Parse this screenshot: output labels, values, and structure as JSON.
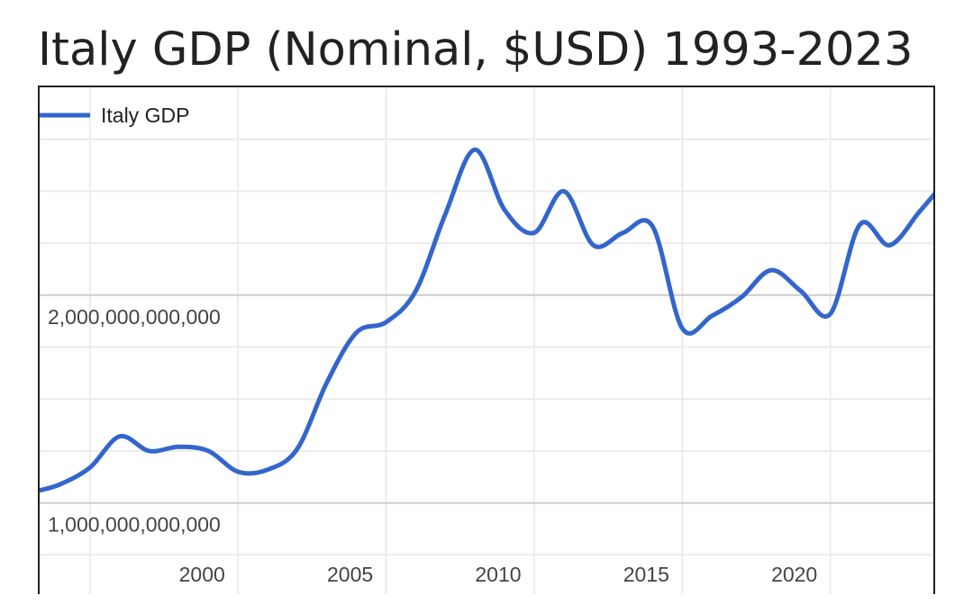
{
  "title": "Italy GDP (Nominal, $USD) 1993-2023",
  "chart_data": {
    "type": "line",
    "title": "Italy GDP (Nominal, $USD) 1993-2023",
    "xlabel": "",
    "ylabel": "",
    "legend": {
      "position": "top-left"
    },
    "grid": true,
    "xlim": [
      1993.3,
      2023.6
    ],
    "ylim": [
      500000000000,
      3000000000000
    ],
    "x_ticks": [
      {
        "value": 2000,
        "label": "2000"
      },
      {
        "value": 2005,
        "label": "2005"
      },
      {
        "value": 2010,
        "label": "2010"
      },
      {
        "value": 2015,
        "label": "2015"
      },
      {
        "value": 2020,
        "label": "2020"
      }
    ],
    "x_minor_gridlines": [
      1995,
      2000,
      2005,
      2010,
      2015,
      2020
    ],
    "y_ticks": [
      {
        "value": 1000000000000,
        "label": "1,000,000,000,000"
      },
      {
        "value": 2000000000000,
        "label": "2,000,000,000,000"
      }
    ],
    "y_minor_gridlines": [
      750000000000,
      1250000000000,
      1500000000000,
      1750000000000,
      2250000000000,
      2500000000000,
      2750000000000
    ],
    "series": [
      {
        "name": "Italy GDP",
        "color": "#3366cc",
        "x": [
          1993.3,
          1994,
          1995,
          1996,
          1997,
          1998,
          1999,
          2000,
          2001,
          2002,
          2003,
          2004,
          2005,
          2006,
          2007,
          2008,
          2009,
          2010,
          2011,
          2012,
          2013,
          2014,
          2015,
          2016,
          2017,
          2018,
          2019,
          2020,
          2021,
          2022,
          2023,
          2023.6
        ],
        "values": [
          1060000000000,
          1090000000000,
          1170000000000,
          1320000000000,
          1250000000000,
          1270000000000,
          1250000000000,
          1150000000000,
          1160000000000,
          1260000000000,
          1580000000000,
          1820000000000,
          1870000000000,
          2020000000000,
          2390000000000,
          2700000000000,
          2410000000000,
          2300000000000,
          2500000000000,
          2240000000000,
          2300000000000,
          2330000000000,
          1840000000000,
          1900000000000,
          1990000000000,
          2120000000000,
          2020000000000,
          1910000000000,
          2340000000000,
          2240000000000,
          2400000000000,
          2500000000000
        ]
      }
    ]
  }
}
